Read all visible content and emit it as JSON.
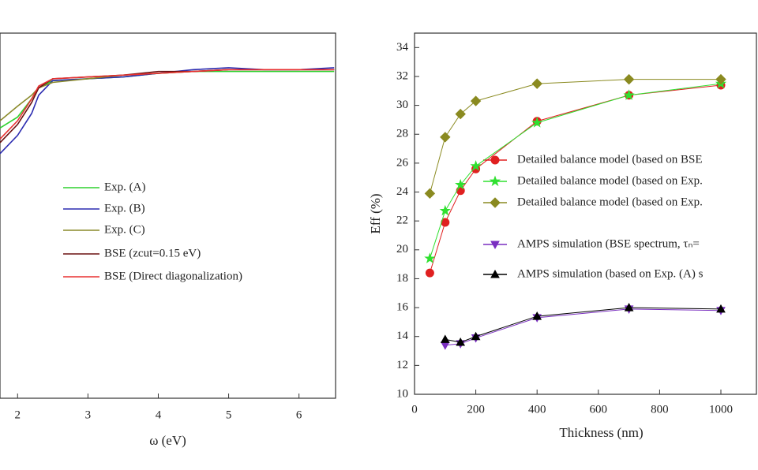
{
  "chart_data": [
    {
      "type": "line",
      "xlabel": "ω (eV)",
      "x": [
        1.75,
        2.0,
        2.2,
        2.3,
        2.5,
        3.0,
        3.5,
        4.0,
        4.5,
        5.0,
        5.5,
        6.0,
        6.5
      ],
      "xlim": [
        1.75,
        6.52
      ],
      "xticks": [
        2,
        3,
        4,
        5,
        6
      ],
      "ylim": [
        0,
        1
      ],
      "series": [
        {
          "name": "Exp. (A)",
          "color": "#2fd12f",
          "values": [
            0.74,
            0.77,
            0.82,
            0.85,
            0.87,
            0.875,
            0.88,
            0.89,
            0.895,
            0.895,
            0.895,
            0.895,
            0.895
          ]
        },
        {
          "name": "Exp. (B)",
          "color": "#2b2bb0",
          "values": [
            0.67,
            0.72,
            0.78,
            0.83,
            0.87,
            0.875,
            0.88,
            0.89,
            0.9,
            0.905,
            0.9,
            0.9,
            0.905
          ]
        },
        {
          "name": "Exp. (C)",
          "color": "#8a8a2a",
          "values": [
            0.76,
            0.8,
            0.83,
            0.85,
            0.865,
            0.875,
            0.885,
            0.89,
            0.895,
            0.9,
            0.9,
            0.9,
            0.9
          ]
        },
        {
          "name": "BSE (zcut=0.15 eV)",
          "color": "#6b1010",
          "values": [
            0.7,
            0.75,
            0.81,
            0.85,
            0.875,
            0.88,
            0.885,
            0.895,
            0.895,
            0.9,
            0.9,
            0.9,
            0.9
          ]
        },
        {
          "name": "BSE (Direct diagonalization)",
          "color": "#e83030",
          "values": [
            0.71,
            0.76,
            0.82,
            0.855,
            0.875,
            0.88,
            0.885,
            0.89,
            0.895,
            0.9,
            0.9,
            0.9,
            0.9
          ]
        }
      ]
    },
    {
      "type": "line",
      "xlabel": "Thickness (nm)",
      "ylabel": "Eff (%)",
      "xlim": [
        0,
        1116
      ],
      "xticks": [
        0,
        200,
        400,
        600,
        800,
        1000
      ],
      "ylim": [
        10,
        35
      ],
      "yticks": [
        10,
        12,
        14,
        16,
        18,
        20,
        22,
        24,
        26,
        28,
        30,
        32,
        34
      ],
      "series": [
        {
          "name": "Detailed balance model (based on BSE",
          "color": "#e02020",
          "marker": "circle",
          "x": [
            50,
            100,
            150,
            200,
            400,
            700,
            1000
          ],
          "values": [
            18.4,
            21.9,
            24.1,
            25.6,
            28.9,
            30.7,
            31.4
          ]
        },
        {
          "name": "Detailed balance model (based on Exp.",
          "color": "#30e030",
          "marker": "star",
          "x": [
            50,
            100,
            150,
            200,
            400,
            700,
            1000
          ],
          "values": [
            19.4,
            22.7,
            24.5,
            25.8,
            28.8,
            30.7,
            31.5
          ]
        },
        {
          "name": "Detailed balance model (based on Exp.",
          "color": "#8a8a20",
          "marker": "diamond",
          "x": [
            50,
            100,
            150,
            200,
            400,
            700,
            1000
          ],
          "values": [
            23.9,
            27.8,
            29.4,
            30.3,
            31.5,
            31.8,
            31.8
          ]
        },
        {
          "name": "AMPS simulation (BSE spectrum, τₙ=",
          "color": "#7a2fc0",
          "marker": "triangle-down",
          "x": [
            100,
            150,
            200,
            400,
            700,
            1000
          ],
          "values": [
            13.4,
            13.5,
            13.9,
            15.3,
            15.9,
            15.8
          ]
        },
        {
          "name": "AMPS simulation (based on Exp. (A) s",
          "color": "#000000",
          "marker": "triangle-up",
          "x": [
            100,
            150,
            200,
            400,
            700,
            1000
          ],
          "values": [
            13.8,
            13.6,
            14.0,
            15.4,
            16.0,
            15.9
          ]
        }
      ]
    }
  ]
}
